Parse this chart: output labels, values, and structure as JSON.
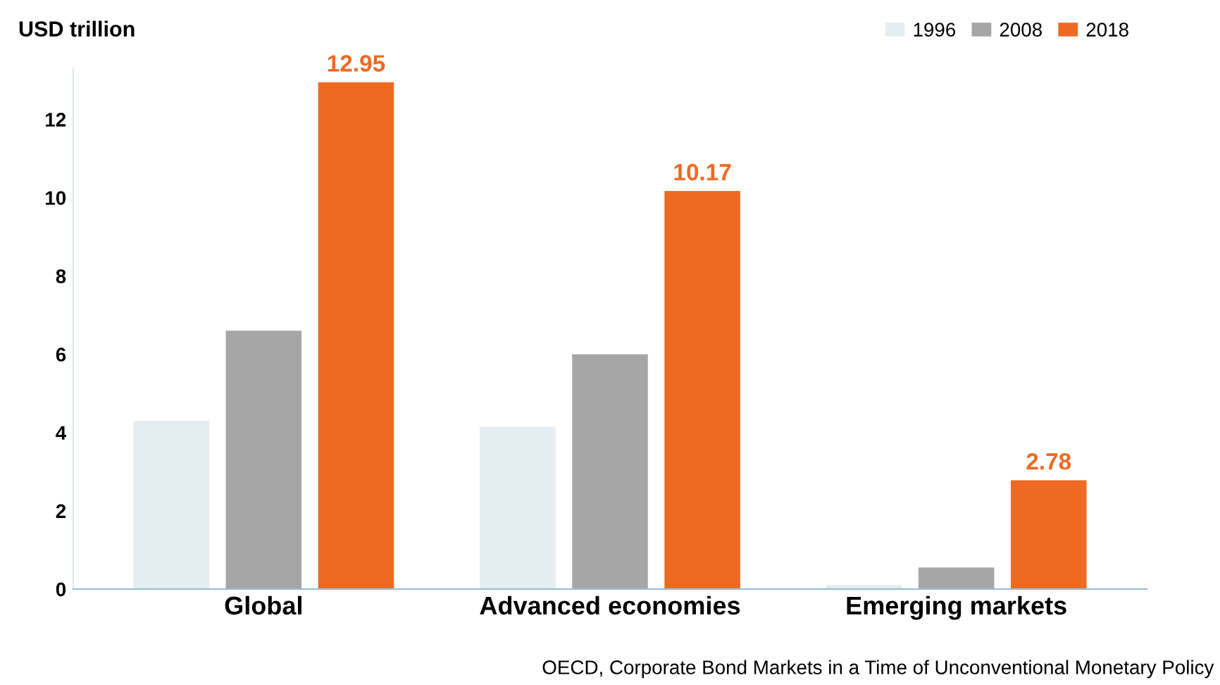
{
  "chart_data": {
    "type": "bar",
    "ylabel": "USD trillion",
    "categories": [
      "Global",
      "Advanced economies",
      "Emerging markets"
    ],
    "series": [
      {
        "name": "1996",
        "color": "#e4edf1",
        "values": [
          4.3,
          4.15,
          0.1
        ]
      },
      {
        "name": "2008",
        "color": "#a6a6a6",
        "values": [
          6.6,
          6.0,
          0.55
        ]
      },
      {
        "name": "2018",
        "color": "#ee6a22",
        "values": [
          12.95,
          10.17,
          2.78
        ],
        "value_labels": [
          "12.95",
          "10.17",
          "2.78"
        ]
      }
    ],
    "ylim": [
      0,
      13.3
    ],
    "yticks": [
      0,
      2,
      4,
      6,
      8,
      10,
      12
    ],
    "grid": false,
    "legend": "top right",
    "annotations": [
      "OECD, Corporate Bond Markets in a Time of Unconventional Monetary Policy"
    ]
  }
}
